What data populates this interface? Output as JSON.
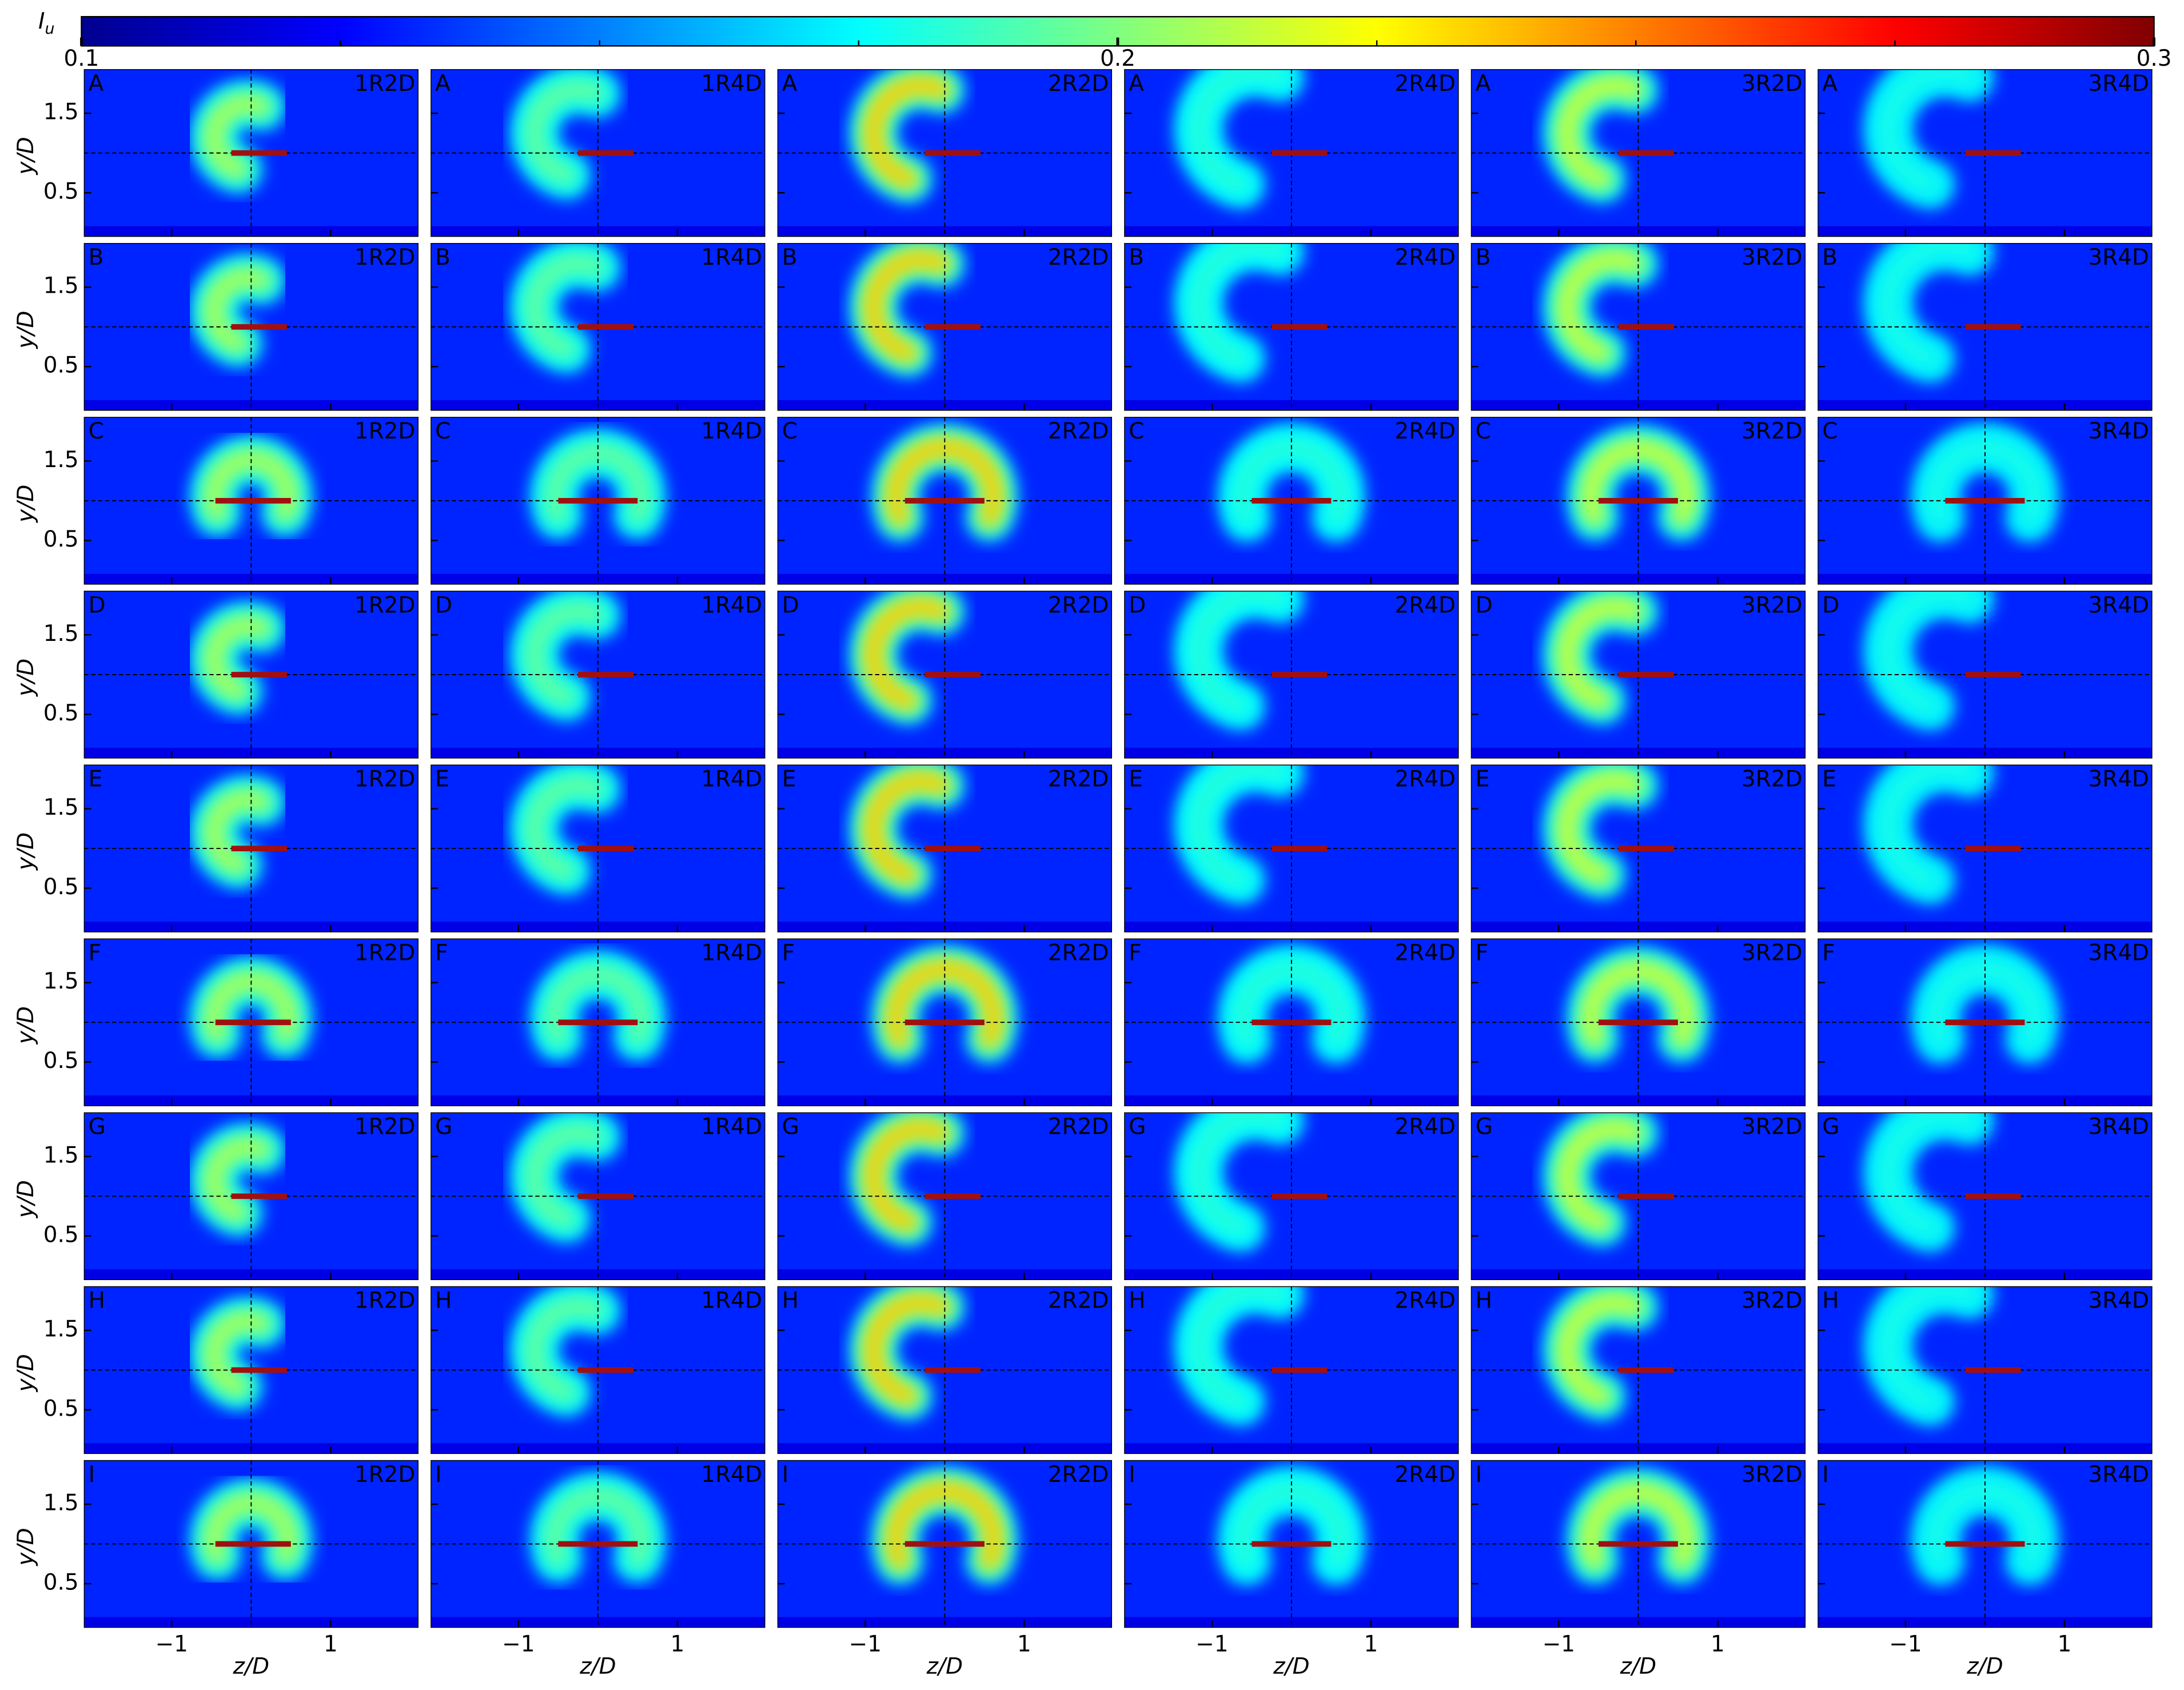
{
  "chart_data": {
    "type": "heatmap-grid",
    "colorbar": {
      "label": "I",
      "label_sub": "u",
      "lim": [
        0.1,
        0.3
      ],
      "ticks": [
        0.1,
        0.2,
        0.3
      ],
      "minor_ticks": [
        0.125,
        0.15,
        0.175,
        0.225,
        0.25,
        0.275
      ],
      "colormap": "jet"
    },
    "rows": [
      "A",
      "B",
      "C",
      "D",
      "E",
      "F",
      "G",
      "H",
      "I"
    ],
    "columns": [
      "1R2D",
      "1R4D",
      "2R2D",
      "2R4D",
      "3R2D",
      "3R4D"
    ],
    "xlabel": "z/D",
    "ylabel": "y/D",
    "xlim": [
      -2.1,
      2.1
    ],
    "ylim": [
      -0.05,
      2.05
    ],
    "xticks": [
      {
        "value": -1,
        "label": "−1"
      },
      {
        "value": 1,
        "label": "1"
      }
    ],
    "yticks": [
      0.5,
      1.5
    ]
  }
}
